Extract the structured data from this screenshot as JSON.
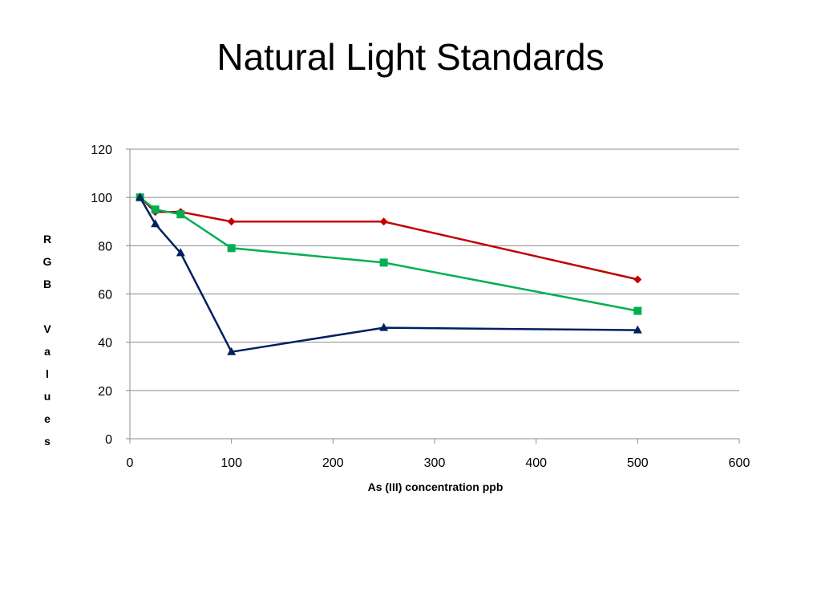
{
  "slide": {
    "title": "Natural Light Standards"
  },
  "chart_data": {
    "type": "line",
    "title": "",
    "xlabel": "As (III) concentration ppb",
    "ylabel": "RGB Values",
    "xlim": [
      0,
      600
    ],
    "ylim": [
      0,
      120
    ],
    "x_ticks": [
      0,
      100,
      200,
      300,
      400,
      500,
      600
    ],
    "y_ticks": [
      0,
      20,
      40,
      60,
      80,
      100,
      120
    ],
    "grid": "horizontal",
    "legend": "none",
    "series": [
      {
        "color": "#C00000",
        "marker": "diamond",
        "points": [
          [
            10,
            100
          ],
          [
            25,
            94
          ],
          [
            50,
            94
          ],
          [
            100,
            90
          ],
          [
            250,
            90
          ],
          [
            500,
            66
          ]
        ]
      },
      {
        "color": "#00B050",
        "marker": "square",
        "points": [
          [
            10,
            100
          ],
          [
            25,
            95
          ],
          [
            50,
            93
          ],
          [
            100,
            79
          ],
          [
            250,
            73
          ],
          [
            500,
            53
          ]
        ]
      },
      {
        "color": "#002060",
        "marker": "triangle",
        "points": [
          [
            10,
            100
          ],
          [
            25,
            89
          ],
          [
            50,
            77
          ],
          [
            100,
            36
          ],
          [
            250,
            46
          ],
          [
            500,
            45
          ]
        ]
      }
    ]
  }
}
